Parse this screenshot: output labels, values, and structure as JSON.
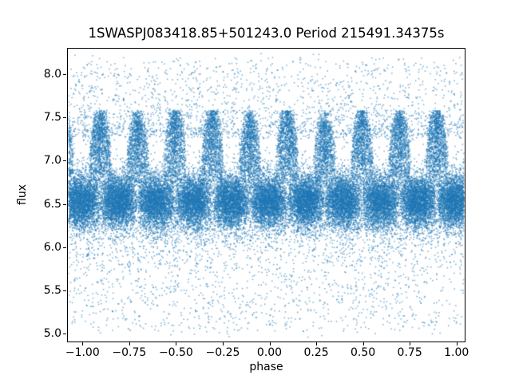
{
  "chart_data": {
    "type": "scatter",
    "title": "1SWASPJ083418.85+501243.0 Period 215491.34375s",
    "xlabel": "phase",
    "ylabel": "flux",
    "legend": null,
    "grid": false,
    "marker_color": "#1f77b4",
    "marker_alpha": 0.55,
    "marker_size_px": 1.6,
    "xlim": [
      -1.082,
      1.044
    ],
    "ylim": [
      4.908,
      8.304
    ],
    "x_ticks": [
      -1.0,
      -0.75,
      -0.5,
      -0.25,
      0.0,
      0.25,
      0.5,
      0.75,
      1.0
    ],
    "x_tick_labels": [
      "−1.00",
      "−0.75",
      "−0.50",
      "−0.25",
      "0.00",
      "0.25",
      "0.50",
      "0.75",
      "1.00"
    ],
    "y_ticks": [
      5.0,
      5.5,
      6.0,
      6.5,
      7.0,
      7.5,
      8.0
    ],
    "y_tick_labels": [
      "5.0",
      "5.5",
      "6.0",
      "6.5",
      "7.0",
      "7.5",
      "8.0"
    ],
    "description": "Phase-folded SuperWASP light curve; dense flux band near 6.5 with ~10 brightness humps reaching ~7.5 repeating every 0.2 in phase, sparse outliers up to ~8.2 and faint dips down to ~5.0",
    "model": {
      "seed": 7,
      "n_points": 52000,
      "x_range": [
        -1.075,
        1.04
      ],
      "oscillation_period_phase": 0.2,
      "hump_center_phase": 0.095,
      "band": {
        "center_flux": 6.53,
        "sigma": 0.155
      },
      "hump": {
        "base_flux": 6.78,
        "peak_flux": 7.45,
        "half_width_cycles": 0.3,
        "cap_flux": 7.58
      },
      "upper_outliers": {
        "from_flux": 7.3,
        "to_flux": 8.17,
        "weight": 0.065
      },
      "lower_tails": {
        "from_flux": 6.3,
        "to_flux": 5.01,
        "weight": 0.105
      },
      "beat_clumps": [
        {
          "center_phase": -0.45,
          "sigma": 0.24
        },
        {
          "center_phase": 0.55,
          "sigma": 0.24
        },
        {
          "center_phase": -1.0,
          "sigma": 0.14
        }
      ]
    }
  }
}
